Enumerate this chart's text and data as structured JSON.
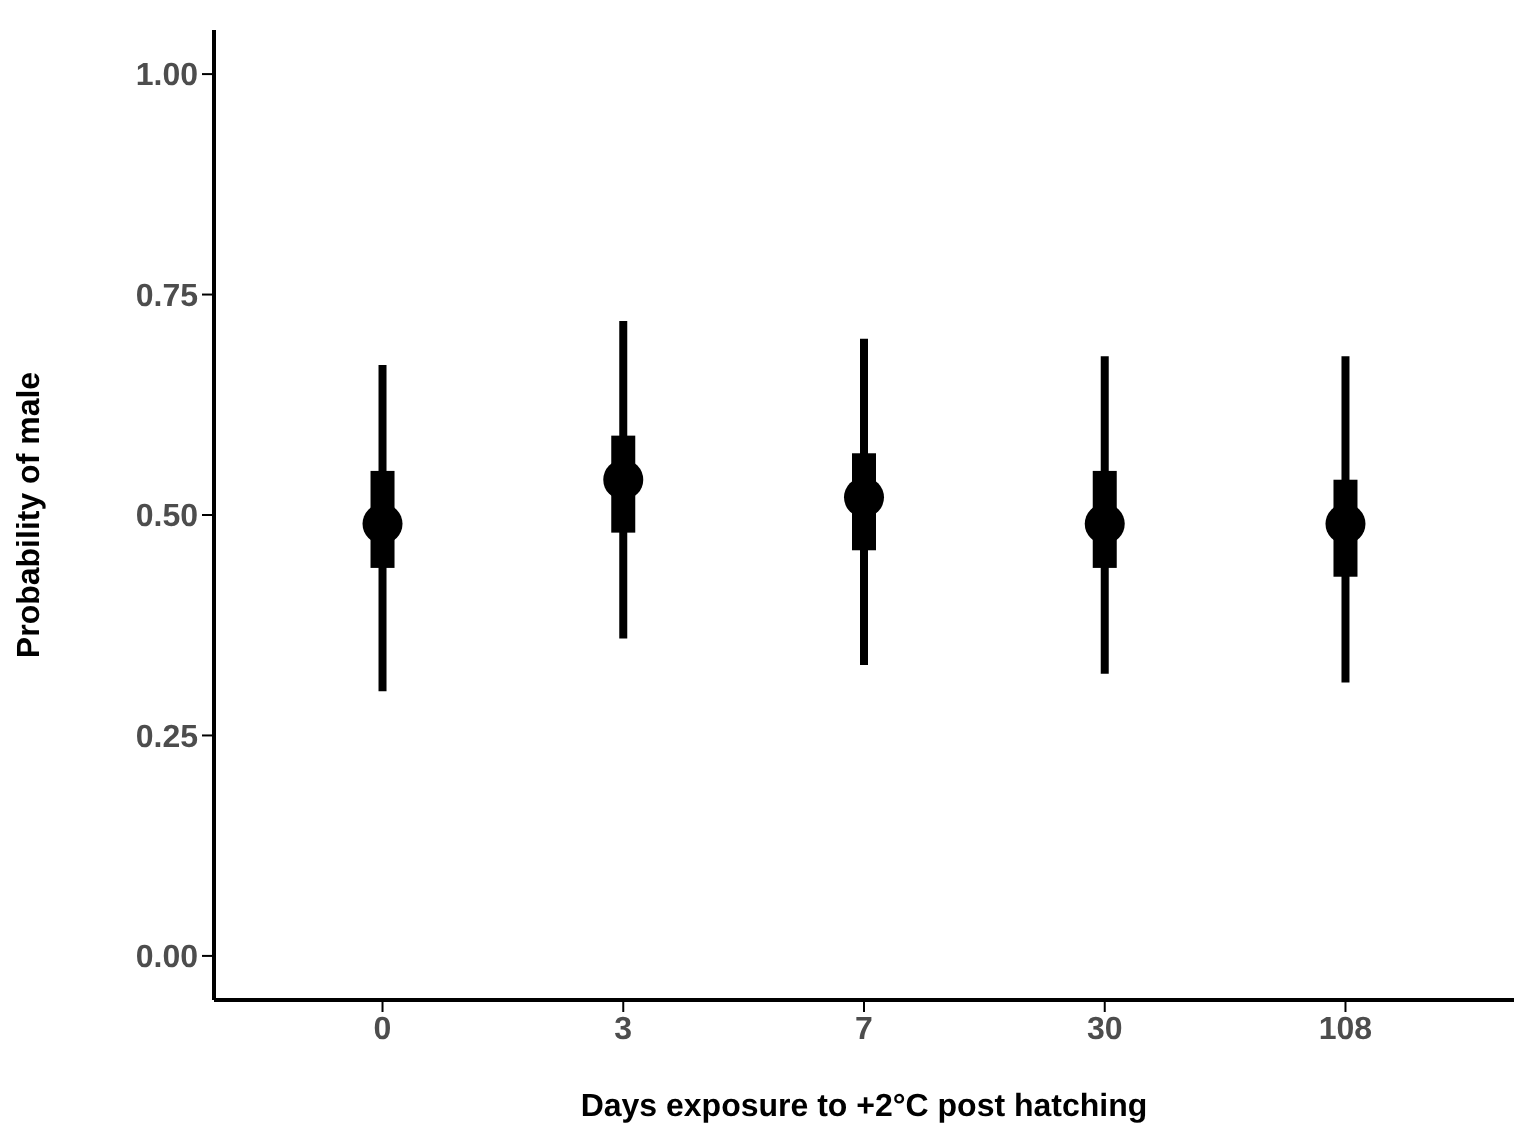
{
  "chart_data": {
    "type": "box",
    "xlabel": "Days exposure to +2°C post hatching",
    "ylabel": "Probability of male",
    "categories": [
      "0",
      "3",
      "7",
      "30",
      "108"
    ],
    "boxes": [
      {
        "low": 0.3,
        "q1": 0.44,
        "median": 0.49,
        "q3": 0.55,
        "high": 0.67
      },
      {
        "low": 0.36,
        "q1": 0.48,
        "median": 0.54,
        "q3": 0.59,
        "high": 0.72
      },
      {
        "low": 0.33,
        "q1": 0.46,
        "median": 0.52,
        "q3": 0.57,
        "high": 0.7
      },
      {
        "low": 0.32,
        "q1": 0.44,
        "median": 0.49,
        "q3": 0.55,
        "high": 0.68
      },
      {
        "low": 0.31,
        "q1": 0.43,
        "median": 0.49,
        "q3": 0.54,
        "high": 0.68
      }
    ],
    "color": "#000000",
    "ylim": [
      -0.05,
      1.05
    ],
    "yticks": [
      {
        "value": 0,
        "label": "0.00"
      },
      {
        "value": 0.25,
        "label": "0.25"
      },
      {
        "value": 0.5,
        "label": "0.50"
      },
      {
        "value": 0.75,
        "label": "0.75"
      },
      {
        "value": 1,
        "label": "1.00"
      }
    ],
    "grid": false,
    "legend": false
  }
}
